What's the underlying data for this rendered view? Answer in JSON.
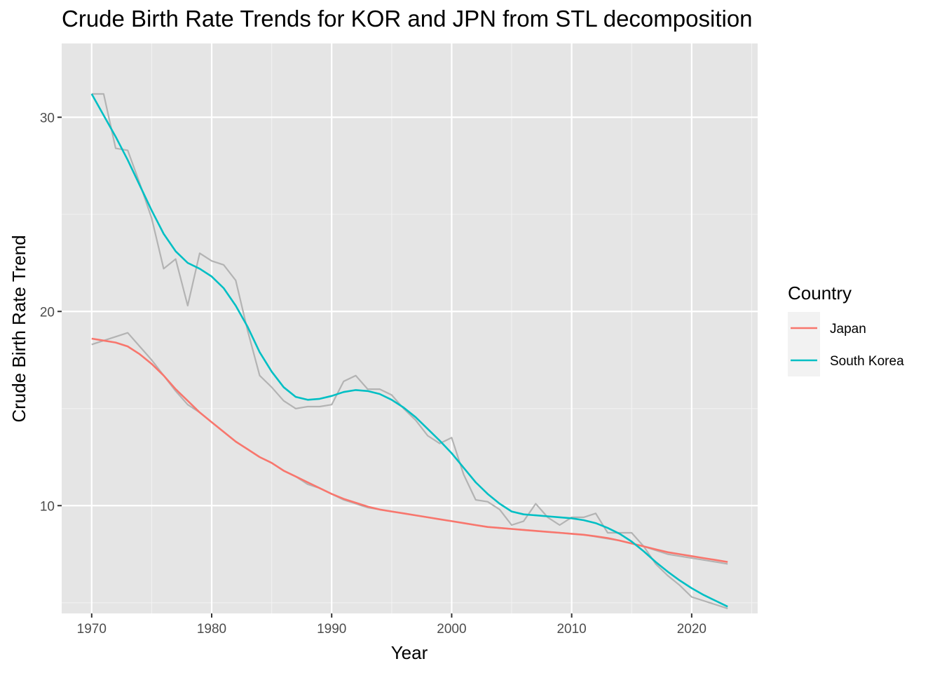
{
  "chart_data": {
    "type": "line",
    "title": "Crude Birth Rate Trends for KOR and JPN from STL decomposition",
    "xlabel": "Year",
    "ylabel": "Crude Birth Rate Trend",
    "xlim": [
      1967.5,
      2025.5
    ],
    "ylim": [
      4.45,
      33.8
    ],
    "x_ticks": [
      1970,
      1980,
      1990,
      2000,
      2010,
      2020
    ],
    "y_ticks": [
      10,
      20,
      30
    ],
    "grid": true,
    "background": "#e5e5e5",
    "legend": {
      "title": "Country",
      "position": "right",
      "entries": [
        {
          "label": "Japan",
          "color": "#f8766d"
        },
        {
          "label": "South Korea",
          "color": "#00bfc4"
        }
      ]
    },
    "x": [
      1970,
      1971,
      1972,
      1973,
      1974,
      1975,
      1976,
      1977,
      1978,
      1979,
      1980,
      1981,
      1982,
      1983,
      1984,
      1985,
      1986,
      1987,
      1988,
      1989,
      1990,
      1991,
      1992,
      1993,
      1994,
      1995,
      1996,
      1997,
      1998,
      1999,
      2000,
      2001,
      2002,
      2003,
      2004,
      2005,
      2006,
      2007,
      2008,
      2009,
      2010,
      2011,
      2012,
      2013,
      2014,
      2015,
      2016,
      2017,
      2018,
      2019,
      2020,
      2021,
      2022,
      2023
    ],
    "series": [
      {
        "name": "Japan",
        "role": "trend",
        "color": "#f8766d",
        "values": [
          18.6,
          18.5,
          18.4,
          18.2,
          17.8,
          17.3,
          16.7,
          16.0,
          15.4,
          14.8,
          14.3,
          13.8,
          13.3,
          12.9,
          12.5,
          12.2,
          11.8,
          11.5,
          11.2,
          10.9,
          10.6,
          10.35,
          10.15,
          9.95,
          9.8,
          9.7,
          9.6,
          9.5,
          9.4,
          9.3,
          9.2,
          9.1,
          9.0,
          8.9,
          8.85,
          8.8,
          8.75,
          8.7,
          8.65,
          8.6,
          8.55,
          8.5,
          8.42,
          8.33,
          8.2,
          8.05,
          7.9,
          7.75,
          7.6,
          7.5,
          7.4,
          7.3,
          7.2,
          7.1
        ]
      },
      {
        "name": "",
        "role": "observed",
        "color": "#b3b3b3",
        "values": [
          18.3,
          18.5,
          18.7,
          18.9,
          18.2,
          17.5,
          16.7,
          15.9,
          15.2,
          14.8,
          14.3,
          13.8,
          13.3,
          12.9,
          12.5,
          12.2,
          11.8,
          11.5,
          11.1,
          10.9,
          10.6,
          10.3,
          10.1,
          9.9,
          9.8,
          9.7,
          9.6,
          9.5,
          9.4,
          9.3,
          9.2,
          9.1,
          9.0,
          8.9,
          8.85,
          8.8,
          8.75,
          8.7,
          8.65,
          8.6,
          8.55,
          8.5,
          8.4,
          8.3,
          8.2,
          8.05,
          7.9,
          7.7,
          7.5,
          7.4,
          7.3,
          7.2,
          7.1,
          7.0
        ]
      },
      {
        "name": "South Korea",
        "role": "trend",
        "color": "#00bfc4",
        "values": [
          31.2,
          30.1,
          29.0,
          27.8,
          26.5,
          25.2,
          24.0,
          23.1,
          22.5,
          22.2,
          21.8,
          21.2,
          20.3,
          19.2,
          17.9,
          16.9,
          16.1,
          15.6,
          15.45,
          15.5,
          15.65,
          15.85,
          15.95,
          15.9,
          15.75,
          15.45,
          15.05,
          14.55,
          13.95,
          13.35,
          12.7,
          11.95,
          11.2,
          10.6,
          10.1,
          9.7,
          9.55,
          9.5,
          9.45,
          9.4,
          9.35,
          9.25,
          9.1,
          8.85,
          8.55,
          8.15,
          7.65,
          7.1,
          6.6,
          6.15,
          5.75,
          5.4,
          5.1,
          4.8
        ]
      },
      {
        "name": "",
        "role": "observed",
        "color": "#b3b3b3",
        "values": [
          31.2,
          31.2,
          28.4,
          28.3,
          26.6,
          24.8,
          22.2,
          22.7,
          20.3,
          23.0,
          22.6,
          22.4,
          21.6,
          19.0,
          16.7,
          16.1,
          15.4,
          15.0,
          15.1,
          15.1,
          15.2,
          16.4,
          16.7,
          16.0,
          16.0,
          15.7,
          15.0,
          14.4,
          13.6,
          13.2,
          13.5,
          11.6,
          10.3,
          10.2,
          9.8,
          9.0,
          9.2,
          10.1,
          9.4,
          9.0,
          9.4,
          9.4,
          9.6,
          8.6,
          8.6,
          8.6,
          7.9,
          7.0,
          6.4,
          5.9,
          5.3,
          5.1,
          4.9,
          4.7
        ]
      }
    ]
  }
}
